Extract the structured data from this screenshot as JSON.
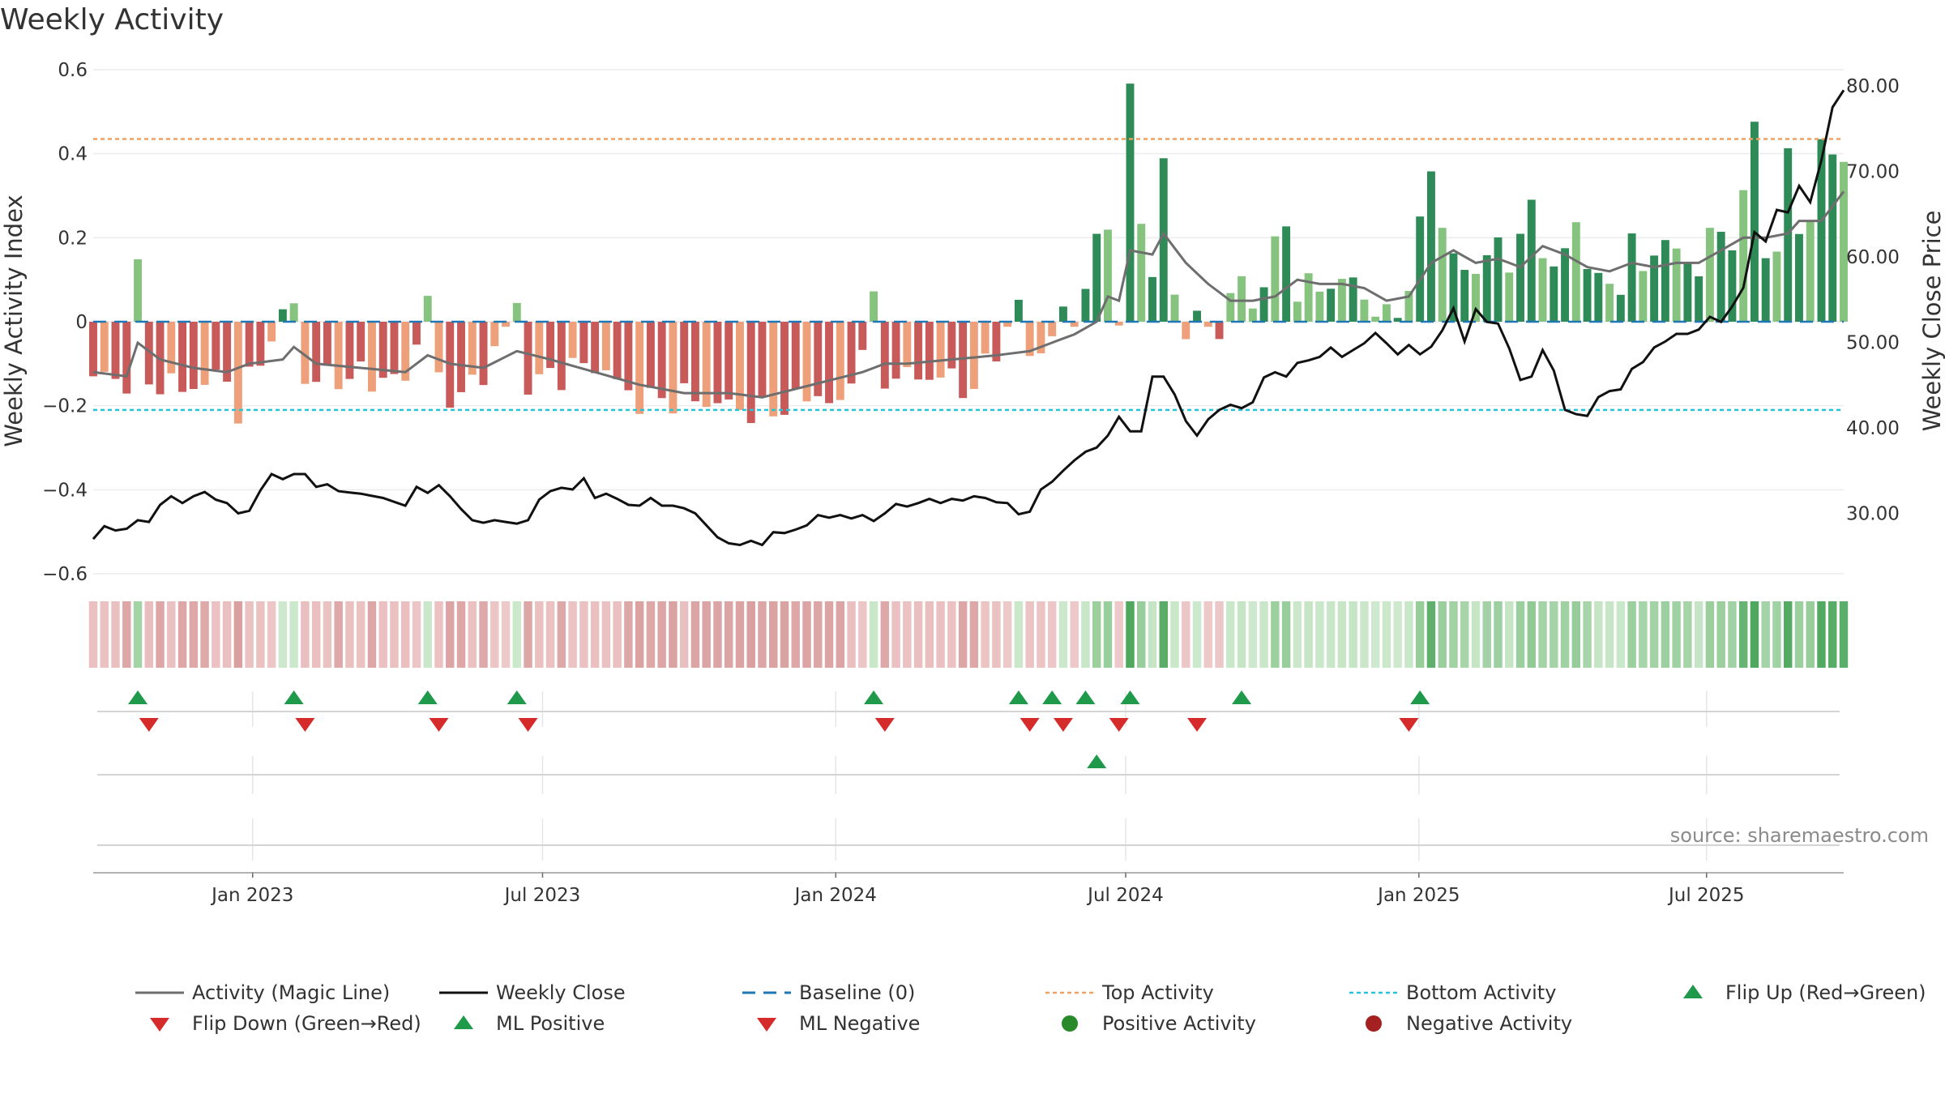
{
  "title": "Weekly Activity",
  "source": "source: sharemaestro.com",
  "colors": {
    "magic_line": "#6e6e6e",
    "close_line": "#111111",
    "baseline": "#1f77b4",
    "top_line": "#f0a060",
    "bottom_line": "#22c6d8",
    "pos_strong": "#2e8b57",
    "pos_light": "#86c37f",
    "neg_strong": "#c85a5a",
    "neg_light": "#eda07a",
    "flip_up": "#1f9a4a",
    "flip_down": "#d62b2b",
    "pos_dot": "#2a8a2a",
    "neg_dot": "#a52020"
  },
  "chart_data": {
    "type": "bar",
    "title": "Weekly Activity",
    "x_start": "2022-09-26",
    "weeks": 158,
    "ylabel_left": "Weekly Activity Index",
    "ylabel_right": "Weekly Close Price",
    "ylim_left": [
      -0.6,
      0.6
    ],
    "ylim_right": [
      20,
      82
    ],
    "left_ticks": [
      0.6,
      0.4,
      0.2,
      0,
      -0.2,
      -0.4,
      -0.6
    ],
    "left_tick_labels": [
      "0.6",
      "0.4",
      "0.2",
      "0",
      "−0.2",
      "−0.4",
      "−0.6"
    ],
    "right_ticks": [
      80,
      70,
      60,
      50,
      40,
      30
    ],
    "right_tick_labels": [
      "80.00",
      "70.00",
      "60.00",
      "50.00",
      "40.00",
      "30.00"
    ],
    "x_ticks": [
      {
        "label": "Jan 2023",
        "week": 14.3
      },
      {
        "label": "Jul 2023",
        "week": 40.3
      },
      {
        "label": "Jan 2024",
        "week": 66.6
      },
      {
        "label": "Jul 2024",
        "week": 92.6
      },
      {
        "label": "Jan 2025",
        "week": 118.9
      },
      {
        "label": "Jul 2025",
        "week": 144.7
      }
    ],
    "top_activity": 0.435,
    "bottom_activity": -0.21,
    "baseline": 0,
    "flip_up_weeks": [
      4,
      18,
      30,
      38,
      70,
      83,
      86,
      89,
      93,
      103,
      119
    ],
    "flip_down_weeks": [
      5,
      19,
      31,
      39,
      71,
      84,
      87,
      92,
      99,
      118
    ],
    "ml_positive_weeks": [
      90
    ],
    "ml_negative_weeks": [],
    "activity_anchors": [
      [
        0,
        -0.13
      ],
      [
        3,
        -0.14
      ],
      [
        4,
        0.11
      ],
      [
        5,
        -0.14
      ],
      [
        8,
        -0.16
      ],
      [
        12,
        -0.13
      ],
      [
        13,
        -0.22
      ],
      [
        15,
        -0.08
      ],
      [
        18,
        0.05
      ],
      [
        19,
        -0.14
      ],
      [
        23,
        -0.13
      ],
      [
        28,
        -0.14
      ],
      [
        30,
        0.06
      ],
      [
        31,
        -0.15
      ],
      [
        33,
        -0.18
      ],
      [
        35,
        -0.12
      ],
      [
        38,
        0.04
      ],
      [
        39,
        -0.15
      ],
      [
        42,
        -0.12
      ],
      [
        45,
        -0.1
      ],
      [
        49,
        -0.19
      ],
      [
        53,
        -0.18
      ],
      [
        57,
        -0.2
      ],
      [
        60,
        -0.22
      ],
      [
        65,
        -0.17
      ],
      [
        67,
        -0.21
      ],
      [
        70,
        0.03
      ],
      [
        71,
        -0.13
      ],
      [
        76,
        -0.13
      ],
      [
        79,
        -0.16
      ],
      [
        83,
        0.04
      ],
      [
        84,
        -0.08
      ],
      [
        86,
        -0.04
      ],
      [
        87,
        0.01
      ],
      [
        89,
        0.06
      ],
      [
        90,
        0.19
      ],
      [
        91,
        0.25
      ],
      [
        92,
        -0.02
      ],
      [
        93,
        0.56
      ],
      [
        94,
        0.23
      ],
      [
        95,
        0.13
      ],
      [
        96,
        0.37
      ],
      [
        97,
        0.05
      ],
      [
        98,
        0.0
      ],
      [
        100,
        -0.01
      ],
      [
        101,
        -0.02
      ],
      [
        102,
        0.06
      ],
      [
        103,
        0.1
      ],
      [
        104,
        0.03
      ],
      [
        105,
        0.11
      ],
      [
        107,
        0.23
      ],
      [
        108,
        0.08
      ],
      [
        110,
        0.08
      ],
      [
        112,
        0.1
      ],
      [
        113,
        0.09
      ],
      [
        114,
        0.06
      ],
      [
        116,
        0.0
      ],
      [
        117,
        0.03
      ],
      [
        118,
        0.09
      ],
      [
        119,
        0.22
      ],
      [
        120,
        0.37
      ],
      [
        121,
        0.23
      ],
      [
        123,
        0.1
      ],
      [
        125,
        0.17
      ],
      [
        127,
        0.15
      ],
      [
        129,
        0.27
      ],
      [
        130,
        0.16
      ],
      [
        131,
        0.14
      ],
      [
        133,
        0.21
      ],
      [
        135,
        0.11
      ],
      [
        136,
        0.06
      ],
      [
        137,
        0.1
      ],
      [
        138,
        0.2
      ],
      [
        139,
        0.11
      ],
      [
        141,
        0.21
      ],
      [
        143,
        0.12
      ],
      [
        144,
        0.15
      ],
      [
        145,
        0.2
      ],
      [
        147,
        0.2
      ],
      [
        148,
        0.3
      ],
      [
        149,
        0.47
      ],
      [
        150,
        0.15
      ],
      [
        151,
        0.19
      ],
      [
        152,
        0.39
      ],
      [
        153,
        0.2
      ],
      [
        154,
        0.28
      ],
      [
        155,
        0.4
      ],
      [
        157,
        0.4
      ]
    ],
    "magic_anchors": [
      [
        0,
        -0.12
      ],
      [
        3,
        -0.13
      ],
      [
        4,
        -0.05
      ],
      [
        6,
        -0.09
      ],
      [
        9,
        -0.11
      ],
      [
        12,
        -0.12
      ],
      [
        14,
        -0.1
      ],
      [
        17,
        -0.09
      ],
      [
        18,
        -0.06
      ],
      [
        20,
        -0.1
      ],
      [
        24,
        -0.11
      ],
      [
        28,
        -0.12
      ],
      [
        30,
        -0.08
      ],
      [
        32,
        -0.1
      ],
      [
        35,
        -0.11
      ],
      [
        38,
        -0.07
      ],
      [
        41,
        -0.09
      ],
      [
        45,
        -0.12
      ],
      [
        49,
        -0.15
      ],
      [
        53,
        -0.17
      ],
      [
        57,
        -0.17
      ],
      [
        60,
        -0.18
      ],
      [
        63,
        -0.16
      ],
      [
        66,
        -0.14
      ],
      [
        69,
        -0.12
      ],
      [
        71,
        -0.1
      ],
      [
        73,
        -0.1
      ],
      [
        77,
        -0.09
      ],
      [
        81,
        -0.08
      ],
      [
        84,
        -0.07
      ],
      [
        86,
        -0.05
      ],
      [
        88,
        -0.03
      ],
      [
        90,
        0.0
      ],
      [
        91,
        0.06
      ],
      [
        92,
        0.05
      ],
      [
        93,
        0.17
      ],
      [
        95,
        0.16
      ],
      [
        96,
        0.21
      ],
      [
        98,
        0.14
      ],
      [
        100,
        0.09
      ],
      [
        102,
        0.05
      ],
      [
        104,
        0.05
      ],
      [
        106,
        0.06
      ],
      [
        108,
        0.1
      ],
      [
        110,
        0.09
      ],
      [
        112,
        0.09
      ],
      [
        114,
        0.08
      ],
      [
        116,
        0.05
      ],
      [
        118,
        0.06
      ],
      [
        120,
        0.14
      ],
      [
        122,
        0.17
      ],
      [
        124,
        0.14
      ],
      [
        126,
        0.15
      ],
      [
        128,
        0.13
      ],
      [
        130,
        0.18
      ],
      [
        132,
        0.16
      ],
      [
        134,
        0.13
      ],
      [
        136,
        0.12
      ],
      [
        138,
        0.14
      ],
      [
        140,
        0.13
      ],
      [
        142,
        0.14
      ],
      [
        144,
        0.14
      ],
      [
        146,
        0.17
      ],
      [
        148,
        0.2
      ],
      [
        150,
        0.2
      ],
      [
        152,
        0.21
      ],
      [
        153,
        0.24
      ],
      [
        155,
        0.24
      ],
      [
        157,
        0.31
      ]
    ],
    "close_anchors": [
      [
        0,
        27
      ],
      [
        1,
        28.5
      ],
      [
        2,
        28
      ],
      [
        3,
        28.2
      ],
      [
        4,
        29.2
      ],
      [
        5,
        29
      ],
      [
        6,
        31
      ],
      [
        7,
        32
      ],
      [
        8,
        31.2
      ],
      [
        9,
        32
      ],
      [
        10,
        32.5
      ],
      [
        11,
        31.6
      ],
      [
        12,
        31.2
      ],
      [
        13,
        30
      ],
      [
        14,
        30.3
      ],
      [
        15,
        32.7
      ],
      [
        16,
        34.6
      ],
      [
        17,
        34
      ],
      [
        18,
        34.6
      ],
      [
        19,
        34.6
      ],
      [
        20,
        33.1
      ],
      [
        21,
        33.4
      ],
      [
        22,
        32.6
      ],
      [
        24,
        32.3
      ],
      [
        26,
        31.8
      ],
      [
        28,
        30.9
      ],
      [
        29,
        33.1
      ],
      [
        30,
        32.4
      ],
      [
        31,
        33.3
      ],
      [
        32,
        32
      ],
      [
        33,
        30.5
      ],
      [
        34,
        29.2
      ],
      [
        35,
        28.9
      ],
      [
        36,
        29.2
      ],
      [
        37,
        29
      ],
      [
        38,
        28.8
      ],
      [
        39,
        29.2
      ],
      [
        40,
        31.6
      ],
      [
        41,
        32.6
      ],
      [
        42,
        33
      ],
      [
        43,
        32.8
      ],
      [
        44,
        34.1
      ],
      [
        45,
        31.8
      ],
      [
        46,
        32.3
      ],
      [
        47,
        31.7
      ],
      [
        48,
        31
      ],
      [
        49,
        30.9
      ],
      [
        50,
        31.8
      ],
      [
        51,
        30.9
      ],
      [
        52,
        30.9
      ],
      [
        53,
        30.6
      ],
      [
        54,
        30
      ],
      [
        55,
        28.6
      ],
      [
        56,
        27.2
      ],
      [
        57,
        26.5
      ],
      [
        58,
        26.3
      ],
      [
        59,
        26.8
      ],
      [
        60,
        26.3
      ],
      [
        61,
        27.8
      ],
      [
        62,
        27.7
      ],
      [
        63,
        28.1
      ],
      [
        64,
        28.6
      ],
      [
        65,
        29.8
      ],
      [
        66,
        29.5
      ],
      [
        67,
        29.8
      ],
      [
        68,
        29.4
      ],
      [
        69,
        29.8
      ],
      [
        70,
        29.1
      ],
      [
        71,
        30
      ],
      [
        72,
        31.1
      ],
      [
        73,
        30.8
      ],
      [
        74,
        31.2
      ],
      [
        75,
        31.7
      ],
      [
        76,
        31.2
      ],
      [
        77,
        31.7
      ],
      [
        78,
        31.5
      ],
      [
        79,
        32
      ],
      [
        80,
        31.8
      ],
      [
        81,
        31.3
      ],
      [
        82,
        31.2
      ],
      [
        83,
        29.9
      ],
      [
        84,
        30.2
      ],
      [
        85,
        32.8
      ],
      [
        86,
        33.7
      ],
      [
        87,
        35
      ],
      [
        88,
        36.2
      ],
      [
        89,
        37.2
      ],
      [
        90,
        37.7
      ],
      [
        91,
        39.1
      ],
      [
        92,
        41.3
      ],
      [
        93,
        39.6
      ],
      [
        94,
        39.6
      ],
      [
        95,
        46
      ],
      [
        96,
        46
      ],
      [
        97,
        43.9
      ],
      [
        98,
        40.8
      ],
      [
        99,
        39.1
      ],
      [
        100,
        41
      ],
      [
        101,
        42.1
      ],
      [
        102,
        42.7
      ],
      [
        103,
        42.3
      ],
      [
        104,
        43
      ],
      [
        105,
        45.9
      ],
      [
        106,
        46.5
      ],
      [
        107,
        46
      ],
      [
        108,
        47.6
      ],
      [
        109,
        47.9
      ],
      [
        110,
        48.3
      ],
      [
        111,
        49.4
      ],
      [
        112,
        48.3
      ],
      [
        113,
        49.1
      ],
      [
        114,
        49.9
      ],
      [
        115,
        51.1
      ],
      [
        116,
        49.9
      ],
      [
        117,
        48.6
      ],
      [
        118,
        49.7
      ],
      [
        119,
        48.6
      ],
      [
        120,
        49.5
      ],
      [
        121,
        51.4
      ],
      [
        122,
        54
      ],
      [
        123,
        50.1
      ],
      [
        124,
        53.9
      ],
      [
        125,
        52.4
      ],
      [
        126,
        52.2
      ],
      [
        127,
        49.3
      ],
      [
        128,
        45.6
      ],
      [
        129,
        46
      ],
      [
        130,
        49.1
      ],
      [
        131,
        46.7
      ],
      [
        132,
        42.1
      ],
      [
        133,
        41.6
      ],
      [
        134,
        41.4
      ],
      [
        135,
        43.6
      ],
      [
        136,
        44.3
      ],
      [
        137,
        44.5
      ],
      [
        138,
        46.9
      ],
      [
        139,
        47.7
      ],
      [
        140,
        49.4
      ],
      [
        141,
        50.1
      ],
      [
        142,
        51
      ],
      [
        143,
        51
      ],
      [
        144,
        51.5
      ],
      [
        145,
        53
      ],
      [
        146,
        52.4
      ],
      [
        147,
        54.2
      ],
      [
        148,
        56.4
      ],
      [
        149,
        62.9
      ],
      [
        150,
        61.8
      ],
      [
        151,
        65.5
      ],
      [
        152,
        65.2
      ],
      [
        153,
        68.3
      ],
      [
        154,
        66.4
      ],
      [
        155,
        71.3
      ],
      [
        156,
        77.5
      ],
      [
        157,
        79.5
      ]
    ],
    "series": [
      {
        "name": "Activity (Magic Line)"
      },
      {
        "name": "Weekly Close"
      },
      {
        "name": "Baseline (0)"
      },
      {
        "name": "Top Activity"
      },
      {
        "name": "Bottom Activity"
      }
    ]
  },
  "legend": [
    {
      "label": "Activity (Magic Line)",
      "symbol": "line-gray"
    },
    {
      "label": "Weekly Close",
      "symbol": "line-black"
    },
    {
      "label": "Baseline (0)",
      "symbol": "dash-blue"
    },
    {
      "label": "Top Activity",
      "symbol": "dot-orange"
    },
    {
      "label": "Bottom Activity",
      "symbol": "dot-cyan"
    },
    {
      "label": "Flip Up (Red→Green)",
      "symbol": "tri-up-green"
    },
    {
      "label": "Flip Down (Green→Red)",
      "symbol": "tri-down-red"
    },
    {
      "label": "ML Positive",
      "symbol": "tri-up-green"
    },
    {
      "label": "ML Negative",
      "symbol": "tri-down-red"
    },
    {
      "label": "Positive Activity",
      "symbol": "circle-green"
    },
    {
      "label": "Negative Activity",
      "symbol": "circle-red"
    }
  ]
}
